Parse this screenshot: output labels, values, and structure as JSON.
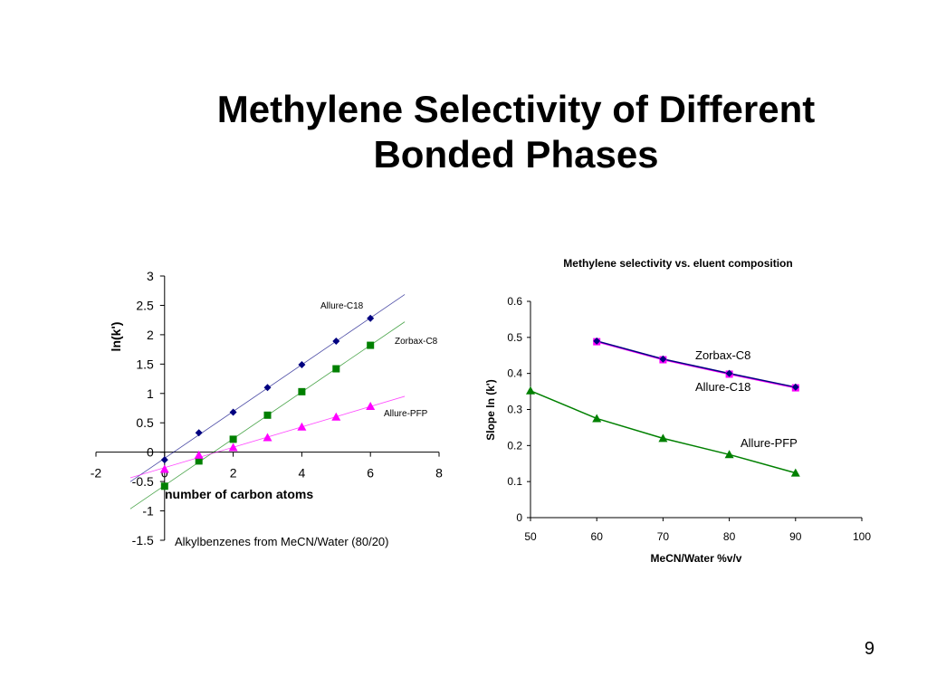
{
  "slide": {
    "title_line1": "Methylene Selectivity of Different",
    "title_line2": "Bonded Phases",
    "page_number": "9"
  },
  "colors": {
    "allure_c18": "#000080",
    "zorbax_c8": "#008000",
    "allure_pfp": "#ff00ff",
    "axis": "#000000"
  },
  "chart_data": [
    {
      "type": "scatter",
      "title": "",
      "xlabel": "number of carbon atoms",
      "ylabel": "ln(k')",
      "xlim": [
        -2,
        8
      ],
      "ylim": [
        -1.5,
        3
      ],
      "xticks": [
        "-2",
        "0",
        "2",
        "4",
        "6",
        "8"
      ],
      "yticks": [
        "3",
        "2.5",
        "2",
        "1.5",
        "1",
        "0.5",
        "0",
        "-0.5",
        "-1",
        "-1.5"
      ],
      "annotation": "Alkylbenzenes from MeCN/Water (80/20)",
      "series": [
        {
          "name": "Allure-C18",
          "marker": "diamond",
          "color": "#000080",
          "x": [
            0,
            1,
            2,
            3,
            4,
            5,
            6
          ],
          "y": [
            -0.13,
            0.33,
            0.68,
            1.1,
            1.49,
            1.89,
            2.28
          ],
          "trendline": true
        },
        {
          "name": "Zorbax-C8",
          "marker": "square",
          "color": "#008000",
          "x": [
            0,
            1,
            2,
            3,
            4,
            5,
            6
          ],
          "y": [
            -0.58,
            -0.15,
            0.22,
            0.63,
            1.03,
            1.42,
            1.82
          ],
          "trendline": true
        },
        {
          "name": "Allure-PFP",
          "marker": "triangle",
          "color": "#ff00ff",
          "x": [
            0,
            1,
            2,
            3,
            4,
            5,
            6
          ],
          "y": [
            -0.29,
            -0.05,
            0.08,
            0.25,
            0.43,
            0.6,
            0.78
          ],
          "trendline": true
        }
      ]
    },
    {
      "type": "line",
      "title": "Methylene selectivity vs. eluent composition",
      "xlabel": "MeCN/Water %v/v",
      "ylabel": "Slope ln (k')",
      "xlim": [
        50,
        100
      ],
      "ylim": [
        0,
        0.6
      ],
      "xticks": [
        "50",
        "60",
        "70",
        "80",
        "90",
        "100"
      ],
      "yticks": [
        "0.6",
        "0.5",
        "0.4",
        "0.3",
        "0.2",
        "0.1",
        "0"
      ],
      "series": [
        {
          "name": "Zorbax-C8",
          "marker": "square",
          "color": "#ff00ff",
          "x": [
            60,
            70,
            80,
            90
          ],
          "y": [
            0.488,
            0.438,
            0.398,
            0.36
          ]
        },
        {
          "name": "Allure-C18",
          "marker": "diamond",
          "color": "#000080",
          "x": [
            60,
            70,
            80,
            90
          ],
          "y": [
            0.49,
            0.44,
            0.4,
            0.362
          ]
        },
        {
          "name": "Allure-PFP",
          "marker": "triangle",
          "color": "#008000",
          "x": [
            50,
            60,
            70,
            80,
            90
          ],
          "y": [
            0.352,
            0.275,
            0.22,
            0.175,
            0.124
          ]
        }
      ]
    }
  ]
}
